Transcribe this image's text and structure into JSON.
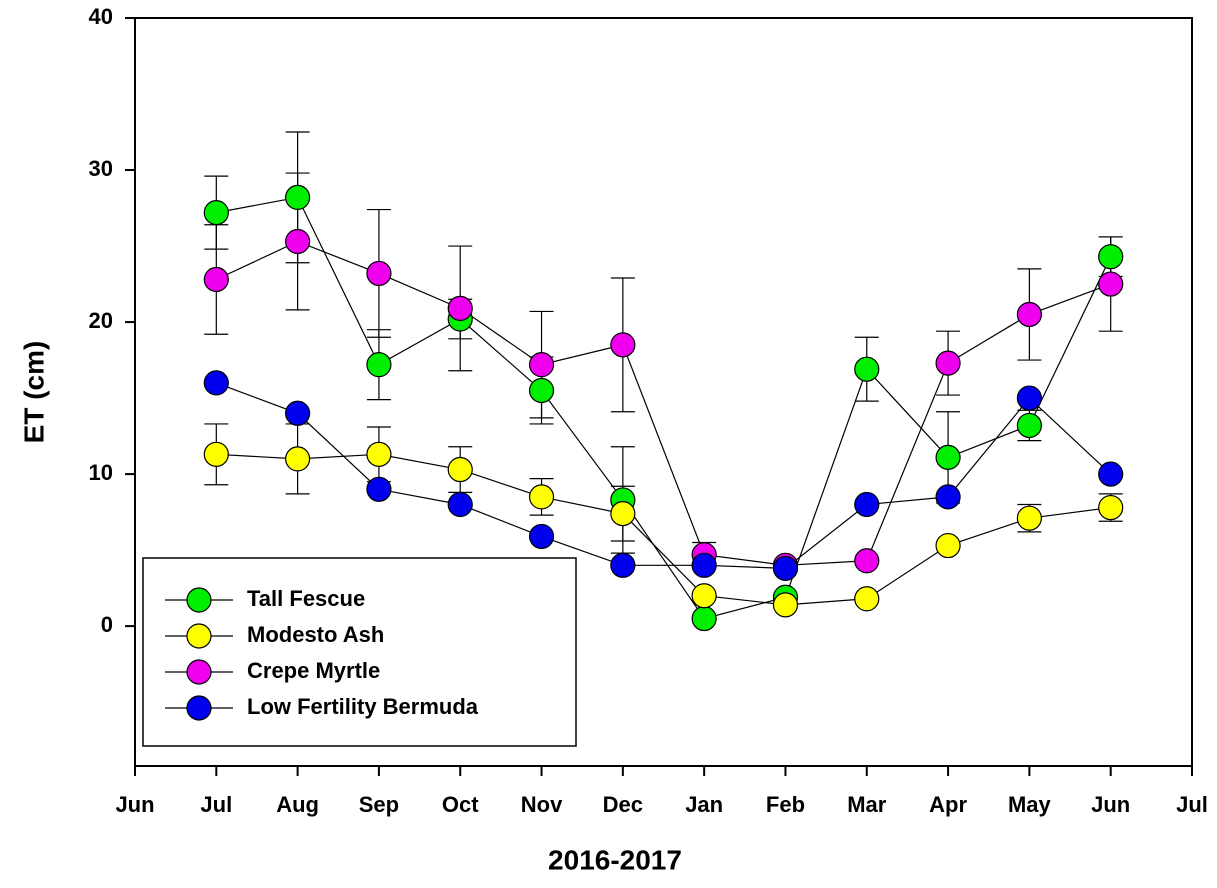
{
  "chart_data": {
    "type": "line",
    "xlabel": "2016-2017",
    "ylabel": "ET (cm)",
    "categories": [
      "Jun",
      "Jul",
      "Aug",
      "Sep",
      "Oct",
      "Nov",
      "Dec",
      "Jan",
      "Feb",
      "Mar",
      "Apr",
      "May",
      "Jun",
      "Jul"
    ],
    "ylim": [
      -9.2,
      40
    ],
    "yticks": [
      0,
      10,
      20,
      30,
      40
    ],
    "legend": "lower left",
    "series": [
      {
        "name": "Tall Fescue",
        "color": "#00ee00",
        "values": [
          null,
          27.2,
          28.2,
          17.2,
          20.2,
          15.5,
          8.3,
          0.5,
          1.9,
          16.9,
          11.1,
          13.2,
          24.3,
          null
        ],
        "errors": [
          null,
          2.4,
          4.3,
          2.3,
          1.3,
          2.2,
          3.5,
          null,
          null,
          2.1,
          3,
          1,
          1.3,
          null
        ]
      },
      {
        "name": "Modesto Ash",
        "color": "#ffff00",
        "values": [
          null,
          11.3,
          11.0,
          11.3,
          10.3,
          8.5,
          7.4,
          2.0,
          1.4,
          1.8,
          5.3,
          7.1,
          7.8,
          null
        ],
        "errors": [
          null,
          2,
          2.3,
          1.8,
          1.5,
          1.2,
          1.8,
          null,
          null,
          null,
          null,
          0.9,
          0.9,
          null
        ]
      },
      {
        "name": "Crepe Myrtle",
        "color": "#ee00ee",
        "values": [
          null,
          22.8,
          25.3,
          23.2,
          20.9,
          17.2,
          18.5,
          4.7,
          4.0,
          4.3,
          17.3,
          20.5,
          22.5,
          null
        ],
        "errors": [
          null,
          3.6,
          4.5,
          4.2,
          4.1,
          3.5,
          4.4,
          0.8,
          null,
          null,
          2.1,
          3,
          3.1,
          null
        ]
      },
      {
        "name": "Low Fertility Bermuda",
        "color": "#0000ee",
        "values": [
          null,
          16.0,
          14.0,
          9.0,
          8.0,
          5.9,
          4.0,
          4.0,
          3.8,
          8.0,
          8.5,
          15.0,
          10.0,
          null
        ]
      }
    ]
  }
}
